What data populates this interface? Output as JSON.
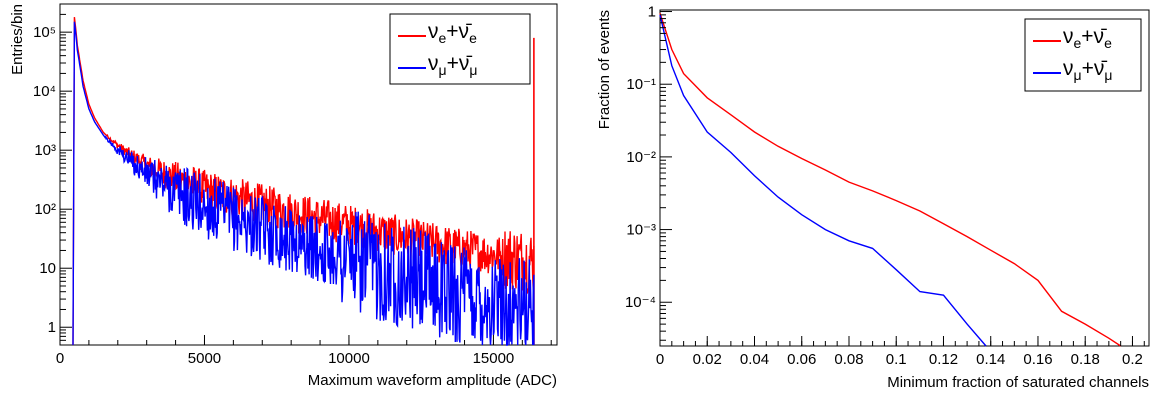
{
  "chart_data": [
    {
      "type": "line",
      "xlabel": "Maximum waveform amplitude (ADC)",
      "ylabel": "Entries/bin",
      "xlim": [
        0,
        17200
      ],
      "ylim": [
        0.5,
        300000
      ],
      "yscale": "log",
      "legend_position": "top-right",
      "x_ticks": [
        {
          "value": 0,
          "label": "0"
        },
        {
          "value": 5000,
          "label": "5000"
        },
        {
          "value": 10000,
          "label": "10000"
        },
        {
          "value": 15000,
          "label": "15000"
        }
      ],
      "y_ticks": [
        {
          "value": 1,
          "label": "1"
        },
        {
          "value": 10,
          "label": "10"
        },
        {
          "value": 100,
          "label": "10²"
        },
        {
          "value": 1000,
          "label": "10³"
        },
        {
          "value": 10000,
          "label": "10⁴"
        },
        {
          "value": 100000,
          "label": "10⁵"
        }
      ],
      "series": [
        {
          "legend_html": "ν<sub>e</sub>+ν̄<sub>e</sub>",
          "color": "#ff0000",
          "x": [
            450,
            500,
            540,
            600,
            700,
            800,
            1000,
            1200,
            1500,
            2000,
            2500,
            3000,
            4000,
            5000,
            6000,
            7000,
            8000,
            9000,
            10000,
            11000,
            12000,
            13000,
            14000,
            15000,
            16000,
            16400
          ],
          "y": [
            0.5,
            180000,
            120000,
            60000,
            30000,
            15000,
            6000,
            3500,
            2000,
            1200,
            800,
            550,
            330,
            210,
            160,
            120,
            90,
            70,
            55,
            42,
            33,
            26,
            21,
            17,
            14,
            13
          ],
          "noise": 0.35,
          "spike": {
            "x": 16400,
            "y": 80000
          }
        },
        {
          "legend_html": "ν<sub>μ</sub>+ν̄<sub>μ</sub>",
          "color": "#0000ff",
          "x": [
            450,
            500,
            540,
            600,
            700,
            800,
            1000,
            1200,
            1500,
            2000,
            2500,
            3000,
            4000,
            5000,
            6000,
            7000,
            8000,
            9000,
            10000,
            11000,
            12000,
            13000,
            14000,
            15000,
            16000,
            16400
          ],
          "y": [
            0.5,
            150000,
            100000,
            50000,
            25000,
            12000,
            5000,
            3000,
            1800,
            1000,
            620,
            400,
            200,
            110,
            70,
            45,
            30,
            20,
            14,
            10,
            7,
            5,
            3.5,
            2.5,
            2,
            1.8
          ],
          "noise": 0.55
        }
      ]
    },
    {
      "type": "line",
      "xlabel": "Minimum fraction of saturated channels",
      "ylabel": "Fraction of events",
      "xlim": [
        0,
        0.207
      ],
      "ylim": [
        2.5e-05,
        1.05
      ],
      "yscale": "log",
      "legend_position": "top-right",
      "x_ticks": [
        {
          "value": 0,
          "label": "0"
        },
        {
          "value": 0.02,
          "label": "0.02"
        },
        {
          "value": 0.04,
          "label": "0.04"
        },
        {
          "value": 0.06,
          "label": "0.06"
        },
        {
          "value": 0.08,
          "label": "0.08"
        },
        {
          "value": 0.1,
          "label": "0.1"
        },
        {
          "value": 0.12,
          "label": "0.12"
        },
        {
          "value": 0.14,
          "label": "0.14"
        },
        {
          "value": 0.16,
          "label": "0.16"
        },
        {
          "value": 0.18,
          "label": "0.18"
        },
        {
          "value": 0.2,
          "label": "0.2"
        }
      ],
      "y_ticks": [
        {
          "value": 0.0001,
          "label": "10⁻⁴"
        },
        {
          "value": 0.001,
          "label": "10⁻³"
        },
        {
          "value": 0.01,
          "label": "10⁻²"
        },
        {
          "value": 0.1,
          "label": "10⁻¹"
        },
        {
          "value": 1,
          "label": "1"
        }
      ],
      "series": [
        {
          "legend_html": "ν<sub>e</sub>+ν̄<sub>e</sub>",
          "color": "#ff0000",
          "x": [
            0,
            0.005,
            0.01,
            0.02,
            0.03,
            0.04,
            0.05,
            0.06,
            0.07,
            0.08,
            0.09,
            0.1,
            0.11,
            0.12,
            0.13,
            0.14,
            0.15,
            0.16,
            0.17,
            0.18,
            0.19,
            0.195
          ],
          "y": [
            0.95,
            0.3,
            0.14,
            0.065,
            0.038,
            0.022,
            0.014,
            0.0095,
            0.0066,
            0.0045,
            0.0034,
            0.0025,
            0.0018,
            0.0012,
            0.0008,
            0.00052,
            0.00034,
            0.0002,
            7.5e-05,
            5e-05,
            3.2e-05,
            2.5e-05
          ]
        },
        {
          "legend_html": "ν<sub>μ</sub>+ν̄<sub>μ</sub>",
          "color": "#0000ff",
          "x": [
            0,
            0.005,
            0.01,
            0.02,
            0.03,
            0.04,
            0.05,
            0.06,
            0.07,
            0.08,
            0.09,
            0.1,
            0.11,
            0.12,
            0.13,
            0.138
          ],
          "y": [
            0.9,
            0.18,
            0.07,
            0.022,
            0.0115,
            0.0055,
            0.0028,
            0.0016,
            0.001,
            0.0007,
            0.00055,
            0.00028,
            0.00014,
            0.000125,
            5e-05,
            2.5e-05
          ]
        }
      ]
    }
  ]
}
